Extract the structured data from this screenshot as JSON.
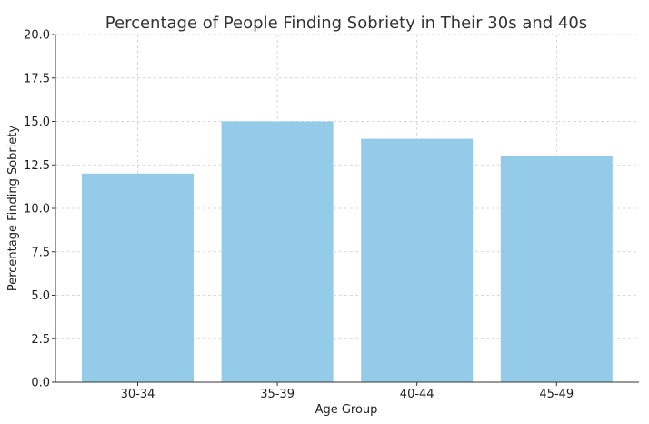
{
  "chart_data": {
    "type": "bar",
    "title": "Percentage of People Finding Sobriety in Their 30s and 40s",
    "xlabel": "Age Group",
    "ylabel": "Percentage Finding Sobriety",
    "categories": [
      "30-34",
      "35-39",
      "40-44",
      "45-49"
    ],
    "values": [
      12,
      15,
      14,
      13
    ],
    "ylim": [
      0,
      20
    ],
    "yticks": [
      "0.0",
      "2.5",
      "5.0",
      "7.5",
      "10.0",
      "12.5",
      "15.0",
      "17.5",
      "20.0"
    ],
    "grid": true,
    "bar_color": "#93cbe8"
  }
}
